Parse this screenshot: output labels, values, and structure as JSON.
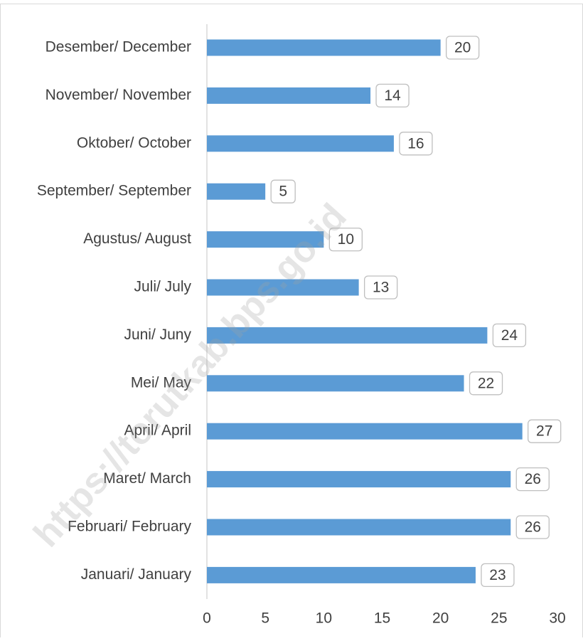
{
  "chart_data": {
    "type": "bar",
    "orientation": "horizontal",
    "categories": [
      "Desember/ December",
      "November/ November",
      "Oktober/ October",
      "September/ September",
      "Agustus/ August",
      "Juli/ July",
      "Juni/ Juny",
      "Mei/ May",
      "April/ April",
      "Maret/ March",
      "Februari/ February",
      "Januari/ January"
    ],
    "values": [
      20,
      14,
      16,
      5,
      10,
      13,
      24,
      22,
      27,
      26,
      26,
      23
    ],
    "color": "#5b9bd5",
    "xlim": [
      0,
      30
    ],
    "xticks": [
      0,
      5,
      10,
      15,
      20,
      25,
      30
    ],
    "grid": false,
    "watermark": "https://torutkab.bps.go.id"
  }
}
